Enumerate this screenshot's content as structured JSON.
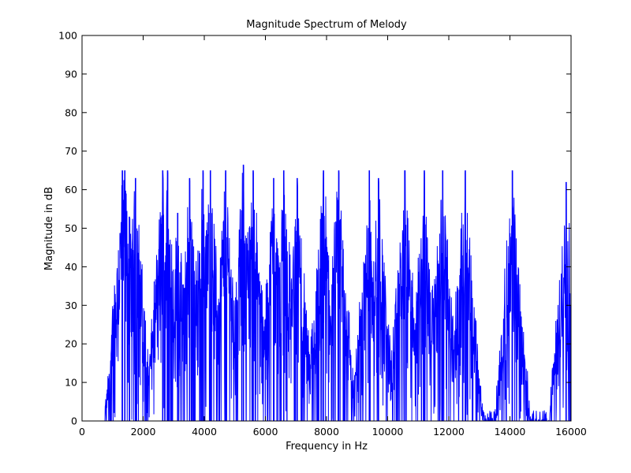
{
  "chart_data": {
    "type": "line",
    "title": "Magnitude Spectrum of Melody",
    "xlabel": "Frequency in Hz",
    "ylabel": "Magnitude in dB",
    "xlim": [
      0,
      16000
    ],
    "ylim": [
      0,
      100
    ],
    "xticks": [
      0,
      2000,
      4000,
      6000,
      8000,
      10000,
      12000,
      14000,
      16000
    ],
    "yticks": [
      0,
      10,
      20,
      30,
      40,
      50,
      60,
      70,
      80,
      90,
      100
    ],
    "grid": false,
    "series_color": "#0000ff",
    "series": [
      {
        "name": "magnitude",
        "spectral_peaks": [
          {
            "frequency_hz": 1320,
            "magnitude_db": 65
          },
          {
            "frequency_hz": 1400,
            "magnitude_db": 65
          },
          {
            "frequency_hz": 1550,
            "magnitude_db": 53
          },
          {
            "frequency_hz": 1750,
            "magnitude_db": 63
          },
          {
            "frequency_hz": 2640,
            "magnitude_db": 65
          },
          {
            "frequency_hz": 2800,
            "magnitude_db": 65
          },
          {
            "frequency_hz": 3130,
            "magnitude_db": 54
          },
          {
            "frequency_hz": 3520,
            "magnitude_db": 63
          },
          {
            "frequency_hz": 3960,
            "magnitude_db": 65
          },
          {
            "frequency_hz": 4200,
            "magnitude_db": 65
          },
          {
            "frequency_hz": 4700,
            "magnitude_db": 65
          },
          {
            "frequency_hz": 5280,
            "magnitude_db": 66.5
          },
          {
            "frequency_hz": 5600,
            "magnitude_db": 65
          },
          {
            "frequency_hz": 6270,
            "magnitude_db": 63
          },
          {
            "frequency_hz": 6600,
            "magnitude_db": 65
          },
          {
            "frequency_hz": 7040,
            "magnitude_db": 63
          },
          {
            "frequency_hz": 7900,
            "magnitude_db": 65
          },
          {
            "frequency_hz": 8400,
            "magnitude_db": 65
          },
          {
            "frequency_hz": 9400,
            "magnitude_db": 65
          },
          {
            "frequency_hz": 9700,
            "magnitude_db": 63
          },
          {
            "frequency_hz": 10560,
            "magnitude_db": 65
          },
          {
            "frequency_hz": 11200,
            "magnitude_db": 65
          },
          {
            "frequency_hz": 11800,
            "magnitude_db": 65
          },
          {
            "frequency_hz": 12540,
            "magnitude_db": 65
          },
          {
            "frequency_hz": 14080,
            "magnitude_db": 65
          },
          {
            "frequency_hz": 15840,
            "magnitude_db": 62
          }
        ],
        "signal_start_hz": 750,
        "signal_end_hz": 16000
      }
    ]
  }
}
